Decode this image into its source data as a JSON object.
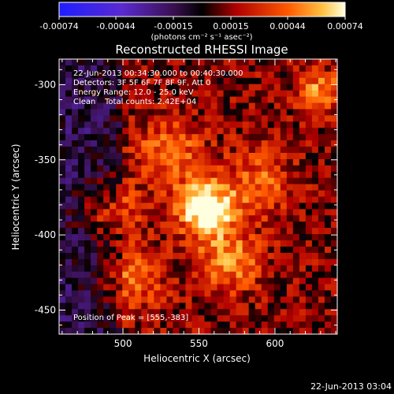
{
  "colorbar": {
    "ticks": [
      "-0.00074",
      "-0.00044",
      "-0.00015",
      "0.00015",
      "0.00044",
      "0.00074"
    ],
    "units": "(photons cm⁻² s⁻¹ asec⁻²)"
  },
  "title": "Reconstructed RHESSI Image",
  "info": {
    "time": "22-Jun-2013 00:34:30.000 to 00:40:30.000",
    "detectors": "Detectors: 3F 5F 6F 7F 8F 9F, Att 0",
    "energy": "Energy Range: 12.0 - 25.0 keV",
    "clean_label": "Clean",
    "counts": "Total counts: 2.42E+04"
  },
  "peak_label": "Position of Peak = [555,-383]",
  "footer_timestamp": "22-Jun-2013 03:04",
  "chart_data": {
    "type": "heatmap",
    "title": "Reconstructed RHESSI Image",
    "xlabel": "Heliocentric X (arcsec)",
    "ylabel": "Heliocentric Y (arcsec)",
    "xlim": [
      458,
      641
    ],
    "ylim": [
      -466,
      -283
    ],
    "x_ticks": [
      500,
      550,
      600
    ],
    "y_ticks": [
      -300,
      -350,
      -400,
      -450
    ],
    "colorbar_range": [
      -0.00074,
      0.00074
    ],
    "peak": [
      555,
      -383
    ],
    "sources": [
      {
        "x": 555,
        "y": -383,
        "amp": 1.0,
        "sigma": 13
      },
      {
        "x": 570,
        "y": -418,
        "amp": 0.55,
        "sigma": 14
      },
      {
        "x": 630,
        "y": -305,
        "amp": 0.55,
        "sigma": 10
      },
      {
        "x": 530,
        "y": -345,
        "amp": 0.45,
        "sigma": 16
      },
      {
        "x": 490,
        "y": -385,
        "amp": 0.45,
        "sigma": 14
      },
      {
        "x": 590,
        "y": -365,
        "amp": 0.4,
        "sigma": 16
      },
      {
        "x": 505,
        "y": -430,
        "amp": 0.4,
        "sigma": 16
      }
    ]
  }
}
